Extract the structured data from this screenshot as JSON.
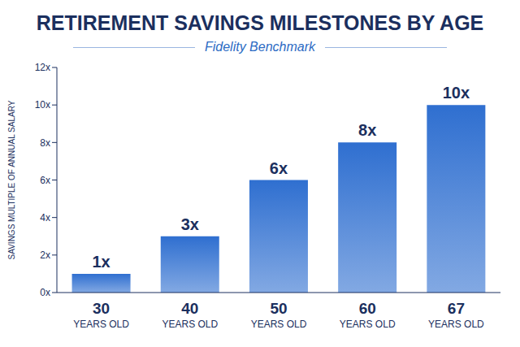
{
  "chart_data": {
    "type": "bar",
    "title": "RETIREMENT SAVINGS MILESTONES BY AGE",
    "subtitle": "Fidelity Benchmark",
    "y_label": "SAVINGS MULTIPLE OF ANNUAL SALARY",
    "categories": [
      "30 YEARS OLD",
      "40 YEARS OLD",
      "50 YEARS OLD",
      "60 YEARS OLD",
      "67 YEARS OLD"
    ],
    "values": [
      1,
      3,
      6,
      8,
      10
    ],
    "value_labels": [
      "1x",
      "3x",
      "6x",
      "8x",
      "10x"
    ],
    "data_labels": true,
    "color": "#2f6fd0",
    "ylim": [
      0,
      12
    ],
    "yticks": [
      {
        "value": 0,
        "label": "0x"
      },
      {
        "value": 2,
        "label": "2x"
      },
      {
        "value": 4,
        "label": "4x"
      },
      {
        "value": 6,
        "label": "6x"
      },
      {
        "value": 8,
        "label": "8x"
      },
      {
        "value": 10,
        "label": "10x"
      },
      {
        "value": 12,
        "label": "12x"
      }
    ],
    "grid": false
  }
}
